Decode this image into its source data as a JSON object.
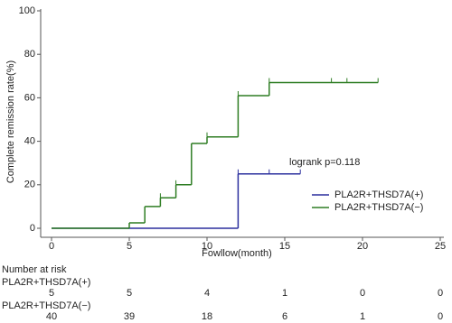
{
  "chart_data": {
    "type": "step",
    "y_label": "Complete remission rate(%)",
    "x_label": "Fowllow(month)",
    "annotation": "logrank p=0.118",
    "xlim": [
      0,
      25
    ],
    "xticks": [
      0,
      5,
      10,
      15,
      20,
      25
    ],
    "ylim": [
      0,
      100
    ],
    "yticks": [
      0,
      20,
      40,
      60,
      80,
      100
    ],
    "series": [
      {
        "name": "PLA2R+THSD7A(+)",
        "color": "#2b2f9e",
        "x": [
          0,
          12,
          16
        ],
        "values": [
          0,
          25,
          25
        ],
        "censored": {
          "x": [
            12,
            14,
            16
          ],
          "values": [
            25,
            25,
            25
          ]
        }
      },
      {
        "name": "PLA2R+THSD7A(−)",
        "color": "#2e7d23",
        "x": [
          0,
          5,
          6,
          7,
          8,
          9,
          10,
          12,
          14,
          21
        ],
        "values": [
          0,
          2.5,
          10,
          14,
          20,
          39,
          42,
          61,
          67,
          67
        ],
        "censored": {
          "x": [
            7,
            8,
            10,
            12,
            14,
            18,
            19,
            21
          ],
          "values": [
            14,
            20,
            42,
            61,
            67,
            67,
            67,
            67
          ]
        }
      }
    ],
    "risk_table": {
      "title": "Number at risk",
      "rows": [
        {
          "label": "PLA2R+THSD7A(+)",
          "counts": [
            5,
            5,
            4,
            1,
            0,
            0
          ]
        },
        {
          "label": "PLA2R+THSD7A(−)",
          "counts": [
            40,
            39,
            18,
            6,
            1,
            0
          ]
        }
      ]
    }
  }
}
